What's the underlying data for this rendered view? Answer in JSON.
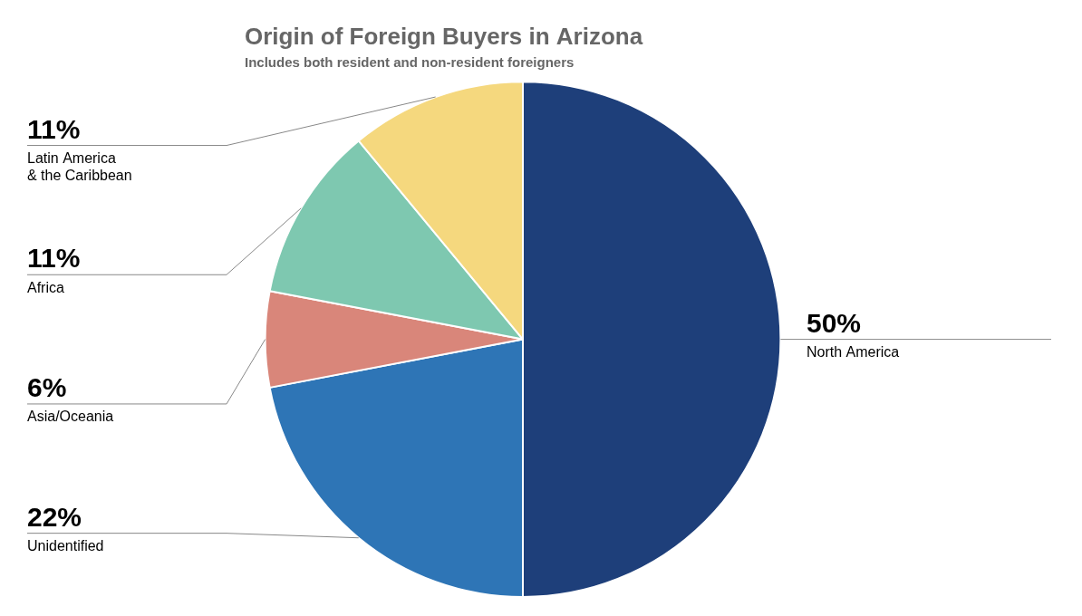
{
  "chart_data": {
    "type": "pie",
    "title": "Origin of Foreign Buyers in Arizona",
    "subtitle": "Includes both resident and non-resident foreigners",
    "categories": [
      "North America",
      "Unidentified",
      "Asia/Oceania",
      "Africa",
      "Latin America\n& the Caribbean"
    ],
    "values": [
      50,
      22,
      6,
      11,
      11
    ],
    "value_labels": [
      "50%",
      "22%",
      "6%",
      "11%",
      "11%"
    ],
    "colors": [
      "#1e3f7a",
      "#2e75b6",
      "#d9867a",
      "#7ec8b0",
      "#f5d87e"
    ],
    "data_labels": true
  }
}
